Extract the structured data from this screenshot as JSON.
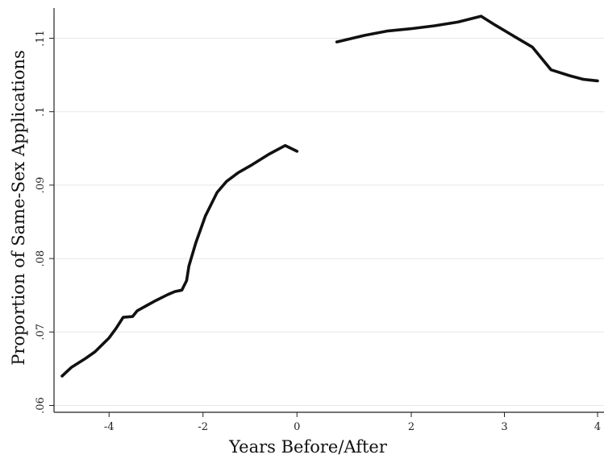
{
  "chart_data": {
    "type": "line",
    "title": "",
    "xlabel": "Years Before/After",
    "ylabel": "Proportion of Same-Sex Applications",
    "ylim": [
      0.06,
      0.114
    ],
    "grid": true,
    "yticks": [
      0.06,
      0.07,
      0.08,
      0.09,
      0.1,
      0.11
    ],
    "ytick_labels": [
      ".06",
      ".07",
      ".08",
      ".09",
      ".1",
      ".11"
    ],
    "xticks_left": [
      {
        "value": -4,
        "label": "-4"
      },
      {
        "value": -2,
        "label": "-2"
      },
      {
        "value": 0,
        "label": "0"
      }
    ],
    "xticks_right": [
      {
        "value": 2,
        "label": "2"
      },
      {
        "value": 3,
        "label": "3"
      },
      {
        "value": 4,
        "label": "4"
      }
    ],
    "series": [
      {
        "segment": "before",
        "xlim": [
          -5,
          0
        ],
        "x": [
          -5.0,
          -4.8,
          -4.5,
          -4.3,
          -4.0,
          -3.85,
          -3.7,
          -3.5,
          -3.4,
          -3.2,
          -3.0,
          -2.75,
          -2.6,
          -2.45,
          -2.35,
          -2.3,
          -2.15,
          -1.95,
          -1.7,
          -1.5,
          -1.25,
          -0.95,
          -0.6,
          -0.25,
          0.0
        ],
        "y": [
          0.064,
          0.0652,
          0.0664,
          0.0673,
          0.0692,
          0.0705,
          0.072,
          0.0721,
          0.0729,
          0.0736,
          0.0743,
          0.0751,
          0.0755,
          0.0757,
          0.077,
          0.079,
          0.0822,
          0.0858,
          0.089,
          0.0905,
          0.0917,
          0.0928,
          0.0942,
          0.0954,
          0.0946
        ]
      },
      {
        "segment": "after",
        "xlim": [
          1,
          4
        ],
        "x": [
          1.2,
          1.5,
          1.75,
          2.0,
          2.25,
          2.5,
          2.75,
          2.9,
          3.1,
          3.3,
          3.5,
          3.7,
          3.85,
          4.0
        ],
        "y": [
          0.1095,
          0.1104,
          0.111,
          0.1113,
          0.1117,
          0.1122,
          0.113,
          0.1118,
          0.1103,
          0.1088,
          0.1057,
          0.1049,
          0.1044,
          0.1042
        ]
      }
    ]
  }
}
